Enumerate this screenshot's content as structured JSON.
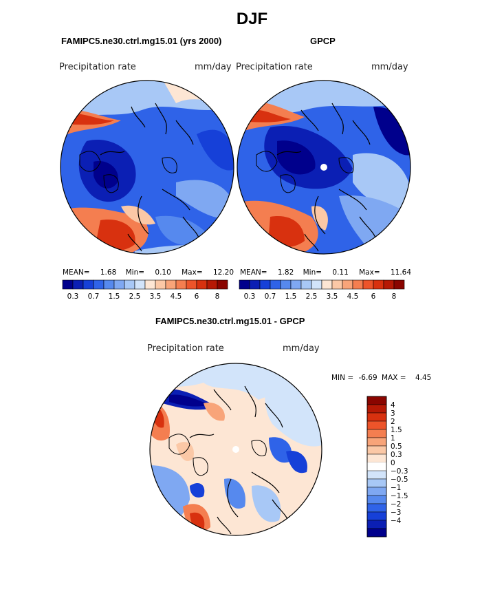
{
  "title": "DJF",
  "panels": [
    {
      "subtitle": "FAMIPC5.ne30.ctrl.mg15.01 (yrs 2000)",
      "variable": "Precipitation rate",
      "units": "mm/day",
      "stats": {
        "mean_label": "MEAN=",
        "mean": "1.68",
        "min_label": "Min=",
        "min": "0.10",
        "max_label": "Max=",
        "max": "12.20"
      }
    },
    {
      "subtitle": "GPCP",
      "variable": "Precipitation rate",
      "units": "mm/day",
      "stats": {
        "mean_label": "MEAN=",
        "mean": "1.82",
        "min_label": "Min=",
        "min": "0.11",
        "max_label": "Max=",
        "max": "11.64"
      }
    }
  ],
  "top_colorbar": {
    "colors": [
      "#00008c",
      "#0b1fb4",
      "#1640d8",
      "#2f63e8",
      "#5689ee",
      "#7fa8f2",
      "#a8c8f6",
      "#d2e4fa",
      "#fde6d4",
      "#fbc8a6",
      "#f8a479",
      "#f47e50",
      "#ed542a",
      "#d8310f",
      "#b61905",
      "#8a0500"
    ],
    "tick_labels": [
      "0.3",
      "0.7",
      "1.5",
      "2.5",
      "3.5",
      "4.5",
      "6",
      "8"
    ]
  },
  "diff_panel": {
    "subtitle": "FAMIPC5.ne30.ctrl.mg15.01 - GPCP",
    "variable": "Precipitation rate",
    "units": "mm/day",
    "min_label": "MIN =",
    "min": "-6.69",
    "max_label": "MAX =",
    "max": "4.45"
  },
  "diff_colorbar": {
    "colors": [
      "#8a0500",
      "#b61905",
      "#d8310f",
      "#ed542a",
      "#f47e50",
      "#f8a479",
      "#fbc8a6",
      "#fde6d4",
      "#ffffff",
      "#d2e4fa",
      "#a8c8f6",
      "#7fa8f2",
      "#5689ee",
      "#2f63e8",
      "#1640d8",
      "#0b1fb4",
      "#00008c"
    ],
    "tick_labels": [
      "4",
      "3",
      "2",
      "1.5",
      "1",
      "0.5",
      "0.3",
      "0",
      "−0.3",
      "−0.5",
      "−1",
      "−1.5",
      "−2",
      "−3",
      "−4"
    ]
  }
}
